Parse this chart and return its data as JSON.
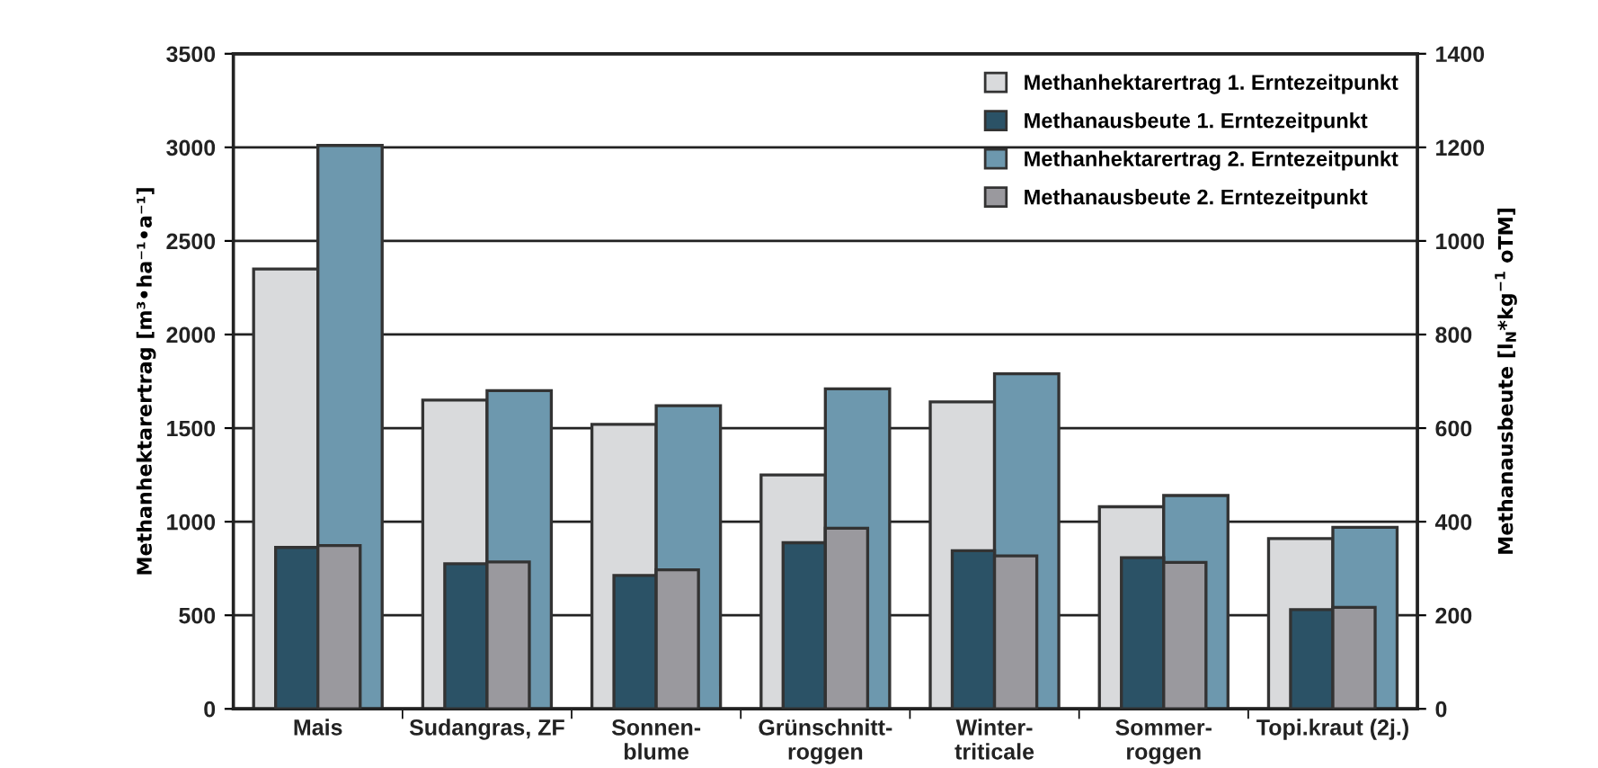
{
  "chart_data": {
    "type": "bar",
    "categories": [
      "Mais",
      "Sudangras, ZF",
      "Sonnen-\nblume",
      "Grünschnitt-\nroggen",
      "Winter-\ntriticale",
      "Sommer-\nroggen",
      "Topi.kraut (2j.)"
    ],
    "series": [
      {
        "name": "Methanhektarertrag 1. Erntezeitpunkt",
        "color": "#d9dadc",
        "values": [
          2350,
          1650,
          1520,
          1250,
          1640,
          1080,
          910
        ]
      },
      {
        "name": "Methanausbeute 1. Erntezeitpunkt",
        "color": "#2b5266",
        "axis": "y2",
        "values": [
          345,
          310,
          285,
          355,
          338,
          323,
          212
        ]
      },
      {
        "name": "Methanhektarertrag 2. Erntezeitpunkt",
        "color": "#6d98ae",
        "values": [
          3010,
          1700,
          1620,
          1710,
          1790,
          1140,
          970
        ]
      },
      {
        "name": "Methanausbeute 2. Erntezeitpunkt",
        "color": "#9a999e",
        "axis": "y2",
        "values": [
          349,
          314,
          297,
          386,
          327,
          313,
          217
        ]
      }
    ],
    "ylabel": "Methanhektarertrag [m³•ha⁻¹•a⁻¹]",
    "y2label": "Methanausbeute [l$_{N}$*kg$^{−1}$ oTM]",
    "ylim": [
      0,
      3500
    ],
    "yticks": [
      0,
      500,
      1000,
      1500,
      2000,
      2500,
      3000,
      3500
    ],
    "y2lim": [
      0,
      1400
    ],
    "y2ticks": [
      0,
      200,
      400,
      600,
      800,
      1000,
      1200,
      1400
    ],
    "grid": "y",
    "legend": "top right"
  }
}
